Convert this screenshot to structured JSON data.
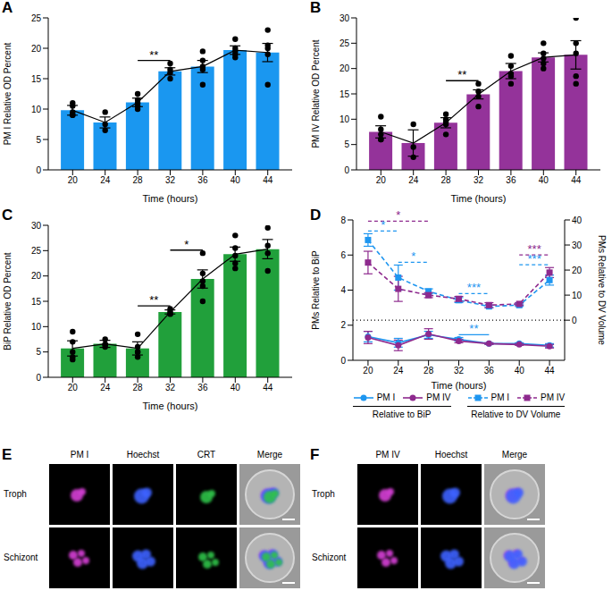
{
  "chart_data": [
    {
      "panel": "A",
      "type": "bar",
      "x": [
        20,
        24,
        28,
        32,
        36,
        40,
        44
      ],
      "values": [
        9.8,
        7.8,
        11.1,
        16.2,
        17.0,
        19.7,
        19.3
      ],
      "errors": [
        0.8,
        0.9,
        0.7,
        0.6,
        1.0,
        0.7,
        1.5
      ],
      "points": [
        [
          11,
          10.5,
          9.5,
          9,
          9
        ],
        [
          9.5,
          7.5,
          6.5
        ],
        [
          12.5,
          11.5,
          11,
          10.5,
          10
        ],
        [
          17.5,
          16.5,
          16,
          15
        ],
        [
          19.5,
          18,
          17,
          16.5,
          14
        ],
        [
          21.5,
          20,
          19.5,
          19,
          18.5
        ],
        [
          23,
          20.5,
          20,
          19,
          14
        ]
      ],
      "color": "#1a97f0",
      "x_label": "Time (hours)",
      "y_label": "PM I Relative OD Percent",
      "xlim": [
        17,
        47
      ],
      "xticks": [
        20,
        24,
        28,
        32,
        36,
        40,
        44
      ],
      "ylim": [
        0,
        25
      ],
      "yticks": [
        0,
        5,
        10,
        15,
        20,
        25
      ],
      "significance": [
        {
          "from": 28,
          "to": 32,
          "label": "**"
        }
      ]
    },
    {
      "panel": "B",
      "type": "bar",
      "x": [
        20,
        24,
        28,
        32,
        36,
        40,
        44
      ],
      "values": [
        7.5,
        5.3,
        9.3,
        14.9,
        19.5,
        22.2,
        22.7
      ],
      "errors": [
        1.2,
        2.6,
        1.0,
        0.9,
        1.5,
        0.9,
        2.8
      ],
      "points": [
        [
          10.5,
          8,
          7,
          6,
          6
        ],
        [
          9,
          4.5,
          2.5
        ],
        [
          11,
          10,
          9.5,
          9,
          7
        ],
        [
          17,
          15.5,
          14.5,
          12.5
        ],
        [
          22.5,
          20.5,
          19,
          18.5,
          17
        ],
        [
          25,
          23,
          22,
          21,
          20
        ],
        [
          30,
          25,
          23,
          18.5,
          17
        ]
      ],
      "color": "#94339a",
      "x_label": "Time (hours)",
      "y_label": "PM IV Relative OD Percent",
      "xlim": [
        17,
        47
      ],
      "xticks": [
        20,
        24,
        28,
        32,
        36,
        40,
        44
      ],
      "ylim": [
        0,
        30
      ],
      "yticks": [
        0,
        5,
        10,
        15,
        20,
        25,
        30
      ],
      "significance": [
        {
          "from": 28,
          "to": 32,
          "label": "**"
        }
      ]
    },
    {
      "panel": "C",
      "type": "bar",
      "x": [
        20,
        24,
        28,
        32,
        36,
        40,
        44
      ],
      "values": [
        5.7,
        6.6,
        5.7,
        12.9,
        19.4,
        24.3,
        25.3
      ],
      "errors": [
        1.5,
        0.7,
        1.3,
        0.4,
        1.8,
        1.4,
        1.9
      ],
      "points": [
        [
          9,
          7,
          5,
          4,
          3.5
        ],
        [
          7.5,
          6.5,
          6.5,
          6
        ],
        [
          8.5,
          6,
          5,
          4,
          5
        ],
        [
          13.5,
          13,
          12.5,
          12.5
        ],
        [
          24.5,
          20.5,
          19,
          18,
          15
        ],
        [
          28,
          25.5,
          24,
          22.5,
          21.5
        ],
        [
          29.5,
          26,
          24.5,
          21
        ]
      ],
      "color": "#21a03b",
      "x_label": "Time (hours)",
      "y_label": "BiP Relative OD Percent",
      "xlim": [
        17,
        47
      ],
      "xticks": [
        20,
        24,
        28,
        32,
        36,
        40,
        44
      ],
      "ylim": [
        0,
        30
      ],
      "yticks": [
        0,
        5,
        10,
        15,
        20,
        25,
        30
      ],
      "significance": [
        {
          "from": 28,
          "to": 32,
          "label": "**"
        },
        {
          "from": 32,
          "to": 36,
          "label": "*"
        }
      ]
    },
    {
      "panel": "D",
      "type": "line",
      "x": [
        20,
        24,
        28,
        32,
        36,
        40,
        44
      ],
      "x_label": "Time (hours)",
      "y_label": "PMs Relative to BiP",
      "y2_label": "PMs Relative to DV Volume",
      "xlim": [
        18,
        46
      ],
      "xticks": [
        20,
        24,
        28,
        32,
        36,
        40,
        44
      ],
      "ylim": [
        0,
        8
      ],
      "yticks": [
        0,
        2,
        4,
        6,
        8
      ],
      "y2lim": [
        -16,
        40
      ],
      "y2ticks": [
        0,
        10,
        20,
        30,
        40
      ],
      "series": [
        {
          "name": "PM I",
          "group": "Relative to BiP",
          "axis": "y",
          "color": "#1e96f0",
          "line_style": "solid",
          "marker": "circle",
          "values": [
            1.35,
            1.0,
            1.45,
            1.2,
            0.95,
            0.95,
            0.85
          ],
          "errors": [
            0.3,
            0.25,
            0.2,
            0.1,
            0.05,
            0.05,
            0.1
          ]
        },
        {
          "name": "PM IV",
          "group": "Relative to BiP",
          "axis": "y",
          "color": "#8e2a8e",
          "line_style": "solid",
          "marker": "circle",
          "values": [
            1.3,
            0.85,
            1.5,
            1.1,
            0.95,
            0.9,
            0.8
          ],
          "errors": [
            0.35,
            0.3,
            0.3,
            0.1,
            0.05,
            0.05,
            0.1
          ]
        },
        {
          "name": "PM I",
          "group": "Relative to DV Volume",
          "axis": "y2",
          "color": "#1e96f0",
          "line_style": "dashed",
          "marker": "square",
          "values": [
            32,
            17,
            11.5,
            8,
            5.5,
            6,
            16
          ],
          "errors": [
            2.5,
            5,
            1,
            1,
            0.5,
            0.5,
            2
          ]
        },
        {
          "name": "PM IV",
          "group": "Relative to DV Volume",
          "axis": "y2",
          "color": "#8e2a8e",
          "line_style": "dashed",
          "marker": "square",
          "values": [
            23,
            12.5,
            10,
            8.5,
            6,
            6.5,
            19
          ],
          "errors": [
            4.5,
            5,
            1,
            1,
            1,
            0.5,
            2
          ]
        }
      ],
      "reference_line": {
        "axis": "y2",
        "value": 0,
        "line_style": "dotted"
      },
      "significance": [
        {
          "from": 20,
          "to": 24,
          "label": "*",
          "axis": "y2",
          "color": "#1e96f0",
          "line_style": "dashed"
        },
        {
          "from": 20,
          "to": 28,
          "label": "*",
          "axis": "y2",
          "color": "#8e2a8e",
          "line_style": "dashed"
        },
        {
          "from": 24,
          "to": 28,
          "label": "*",
          "axis": "y2",
          "color": "#1e96f0",
          "line_style": "dashed"
        },
        {
          "from": 32,
          "to": 36,
          "label": "***",
          "axis": "y2",
          "color": "#1e96f0",
          "line_style": "dashed"
        },
        {
          "from": 32,
          "to": 36,
          "label": "**",
          "axis": "y",
          "color": "#1e96f0",
          "line_style": "solid"
        },
        {
          "from": 40,
          "to": 44,
          "label": "***",
          "axis": "y2",
          "color": "#1e96f0",
          "line_style": "dashed"
        },
        {
          "from": 40,
          "to": 44,
          "label": "***",
          "axis": "y2",
          "color": "#8e2a8e",
          "line_style": "dashed"
        }
      ]
    }
  ],
  "image_panels": [
    {
      "panel": "E",
      "columns": [
        {
          "label": "PM I",
          "color": "#d63fd6"
        },
        {
          "label": "Hoechst",
          "color": "#3d62ff"
        },
        {
          "label": "CRT",
          "color": "#2fc24a"
        },
        {
          "label": "Merge"
        }
      ],
      "rows": [
        "Troph",
        "Schizont"
      ]
    },
    {
      "panel": "F",
      "columns": [
        {
          "label": "PM IV",
          "color": "#d63fd6"
        },
        {
          "label": "Hoechst",
          "color": "#3d62ff"
        },
        {
          "label": "Merge"
        }
      ],
      "rows": [
        "Troph",
        "Schizont"
      ]
    }
  ]
}
